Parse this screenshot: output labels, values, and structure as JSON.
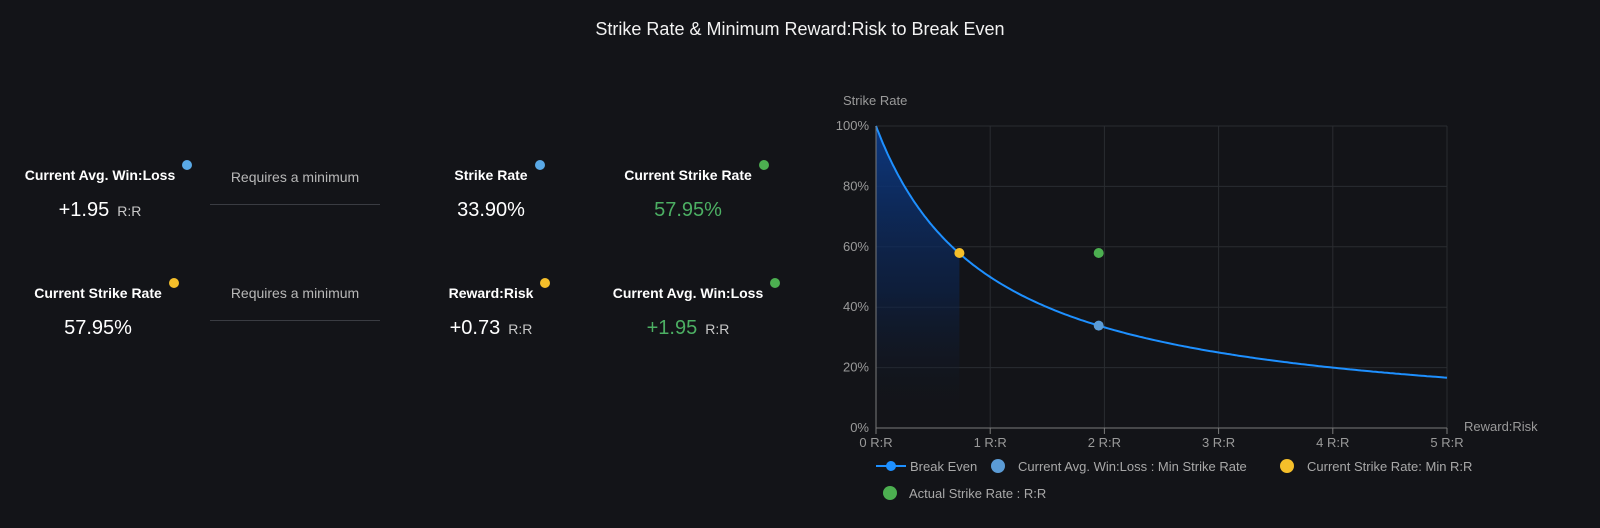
{
  "title": "Strike Rate & Minimum Reward:Risk to Break Even",
  "stats": {
    "row1": {
      "current_avg_label": "Current Avg. Win:Loss",
      "current_avg_value": "+1.95",
      "current_avg_unit": "R:R",
      "requires_label": "Requires a minimum",
      "strike_rate_label": "Strike Rate",
      "strike_rate_value": "33.90%",
      "current_strike_label": "Current Strike Rate",
      "current_strike_value": "57.95%"
    },
    "row2": {
      "current_strike_label": "Current Strike Rate",
      "current_strike_value": "57.95%",
      "requires_label": "Requires a minimum",
      "reward_risk_label": "Reward:Risk",
      "reward_risk_value": "+0.73",
      "reward_risk_unit": "R:R",
      "current_avg_label": "Current Avg. Win:Loss",
      "current_avg_value": "+1.95",
      "current_avg_unit": "R:R"
    }
  },
  "colors": {
    "blue_dot": "#5aa9e6",
    "yellow_dot": "#f5bf2a",
    "green_dot": "#4caf50",
    "curve": "#1e90ff"
  },
  "chart_data": {
    "type": "line",
    "title": "",
    "ylabel": "Strike Rate",
    "xlabel": "Reward:Risk",
    "xlim": [
      0,
      5
    ],
    "ylim": [
      0,
      100
    ],
    "x_ticks": [
      "0 R:R",
      "1 R:R",
      "2 R:R",
      "3 R:R",
      "4 R:R",
      "5 R:R"
    ],
    "y_ticks": [
      "0%",
      "20%",
      "40%",
      "60%",
      "80%",
      "100%"
    ],
    "grid": true,
    "legend_position": "bottom",
    "series": [
      {
        "name": "Break Even",
        "type": "line",
        "formula": "100/(1+x)",
        "x": [
          0,
          0.25,
          0.5,
          0.73,
          1,
          1.5,
          1.95,
          2.5,
          3,
          3.5,
          4,
          4.5,
          5
        ],
        "y": [
          100,
          80,
          66.67,
          57.8,
          50,
          40,
          33.9,
          28.57,
          25,
          22.22,
          20,
          18.18,
          16.67
        ]
      },
      {
        "name": "Current Avg. Win:Loss : Min Strike Rate",
        "type": "scatter",
        "points": [
          [
            1.95,
            33.9
          ]
        ]
      },
      {
        "name": "Current Strike Rate: Min R:R",
        "type": "scatter",
        "points": [
          [
            0.73,
            57.95
          ]
        ]
      },
      {
        "name": "Actual Strike Rate : R:R",
        "type": "scatter",
        "points": [
          [
            1.95,
            57.95
          ]
        ]
      }
    ]
  }
}
